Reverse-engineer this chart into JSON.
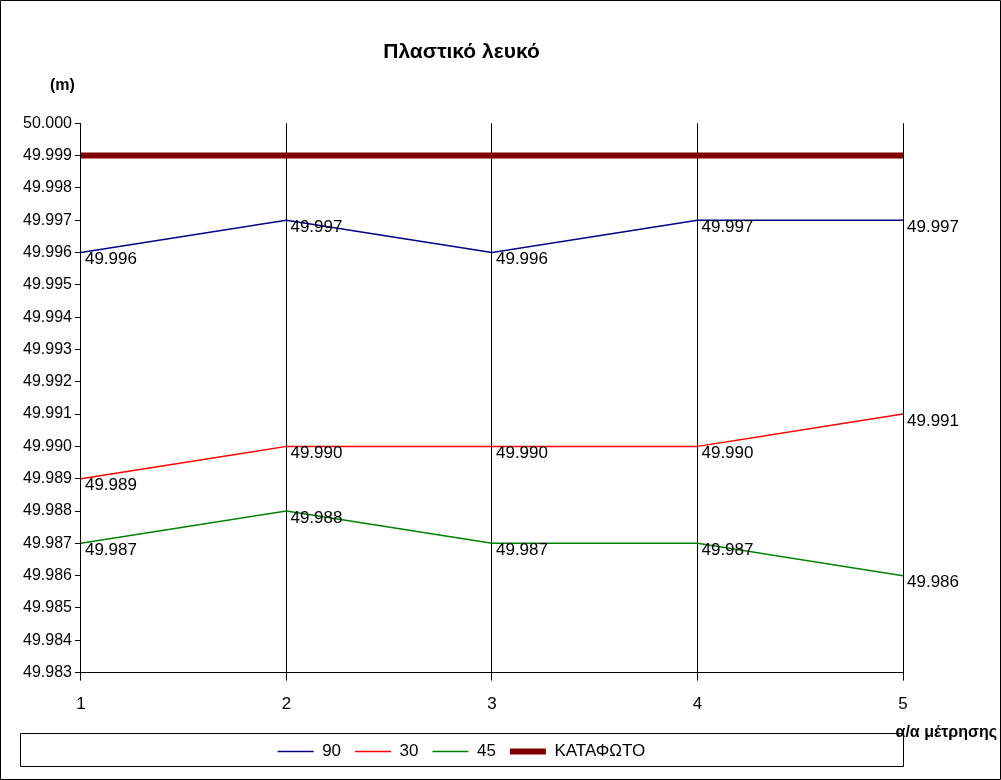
{
  "chart_data": {
    "type": "line",
    "title": "Πλαστικό λευκό",
    "ylabel": "(m)",
    "xlabel": "α/α μέτρησης",
    "x": [
      1,
      2,
      3,
      4,
      5
    ],
    "xlim": [
      1,
      5
    ],
    "xticks": [
      1,
      2,
      3,
      4,
      5
    ],
    "ylim": [
      49.983,
      50.0
    ],
    "yticks": [
      49.983,
      49.984,
      49.985,
      49.986,
      49.987,
      49.988,
      49.989,
      {
        "value": 49.99,
        "label": "49.990"
      },
      49.991,
      49.992,
      49.993,
      49.994,
      49.995,
      49.996,
      49.997,
      49.998,
      49.999,
      {
        "value": 50.0,
        "label": "50.000"
      }
    ],
    "grid": "x",
    "legend": "bottom",
    "marker": "none",
    "line_style": "solid",
    "series": [
      {
        "name": "90",
        "color": "#000080",
        "values": [
          49.996,
          49.997,
          49.996,
          49.997,
          49.997
        ],
        "value_labels": [
          "49.996",
          "49.997",
          "49.996",
          "49.997",
          "49.997"
        ]
      },
      {
        "name": "30",
        "color": "#ff0000",
        "values": [
          49.989,
          49.99,
          49.99,
          49.99,
          49.991
        ],
        "value_labels": [
          "49.989",
          "49.990",
          "49.990",
          "49.990",
          "49.991"
        ]
      },
      {
        "name": "45",
        "color": "#008000",
        "values": [
          49.987,
          49.988,
          49.987,
          49.987,
          49.986
        ],
        "value_labels": [
          "49.987",
          "49.988",
          "49.987",
          "49.987",
          "49.986"
        ]
      },
      {
        "name": "ΚΑΤΑΦΩΤΟ",
        "color": "#800000",
        "values": [
          49.999,
          49.999,
          49.999,
          49.999,
          49.999
        ]
      }
    ]
  }
}
